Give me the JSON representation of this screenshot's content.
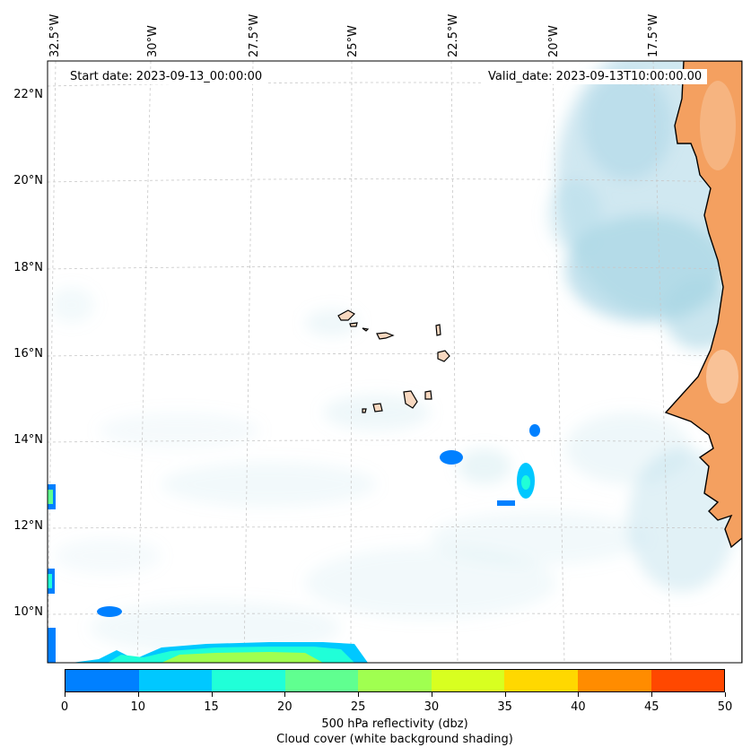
{
  "map": {
    "start_date": "Start date: 2023-09-13_00:00:00",
    "valid_date": "Valid_date: 2023-09-13T10:00:00.00",
    "lon_labels": [
      "32.5°W",
      "30°W",
      "27.5°W",
      "25°W",
      "22.5°W",
      "20°W",
      "17.5°W"
    ],
    "lat_labels": [
      "22°N",
      "20°N",
      "18°N",
      "16°N",
      "14°N",
      "12°N",
      "10°N"
    ],
    "land_color": "#f4a060",
    "cloud_color": "#a9d6e5",
    "gridlines": true
  },
  "colorbar": {
    "ticks": [
      "0",
      "10",
      "15",
      "20",
      "25",
      "30",
      "35",
      "40",
      "45",
      "50"
    ],
    "colors": [
      "#0080ff",
      "#00c8ff",
      "#20ffd8",
      "#60ff90",
      "#a0ff50",
      "#d8ff20",
      "#ffd800",
      "#ff8c00",
      "#ff4800"
    ],
    "label": "500 hPa reflectivity (dbz)",
    "sublabel": "Cloud cover (white background shading)"
  }
}
